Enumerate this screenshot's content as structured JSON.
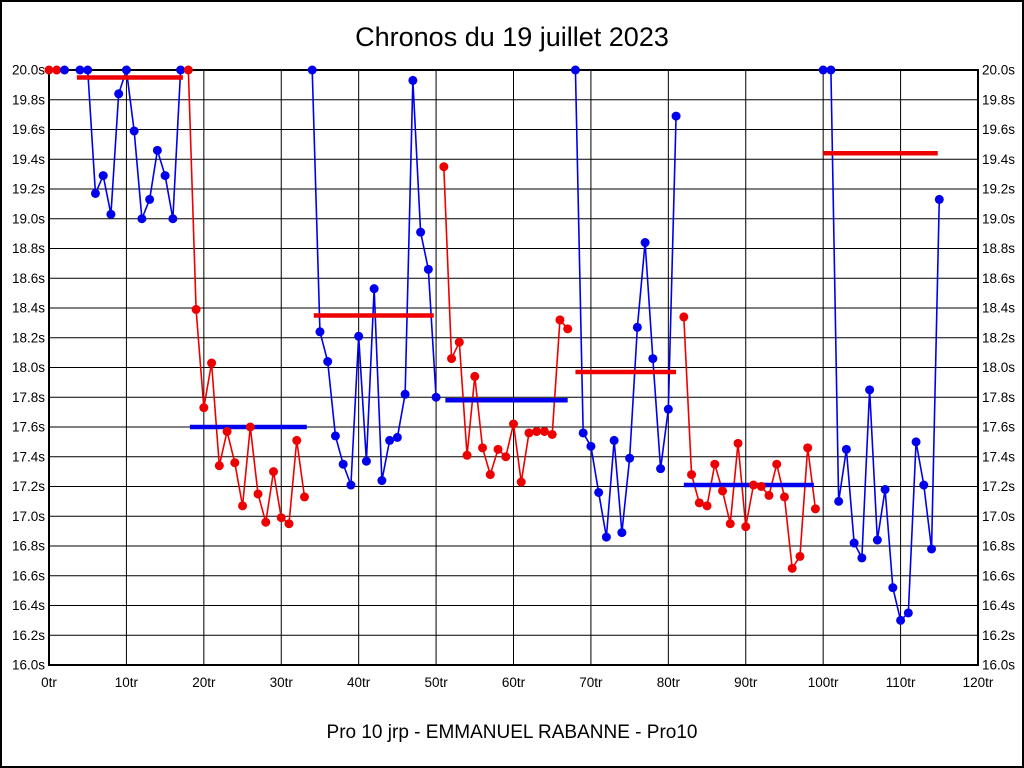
{
  "window": {
    "title": "Chronos du 19 juillet 2023",
    "footer": "Pro 10 jrp - EMMANUEL RABANNE - Pro10"
  },
  "chart_data": {
    "type": "line",
    "title": "Chronos du 19 juillet 2023",
    "subtitle": "Pro 10 jrp - EMMANUEL RABANNE - Pro10",
    "x_unit": "tr",
    "y_unit": "s",
    "xlim": [
      0,
      120
    ],
    "ylim": [
      16.0,
      20.0
    ],
    "x_tick_step": 10,
    "y_tick_step": 0.2,
    "grid": true,
    "clip_max": 20.0,
    "x_ticks": [
      "0tr",
      "10tr",
      "20tr",
      "30tr",
      "40tr",
      "50tr",
      "60tr",
      "70tr",
      "80tr",
      "90tr",
      "100tr",
      "110tr",
      "120tr"
    ],
    "y_ticks": [
      "20.0s",
      "19.8s",
      "19.6s",
      "19.4s",
      "19.2s",
      "19.0s",
      "18.8s",
      "18.6s",
      "18.4s",
      "18.2s",
      "18.0s",
      "17.8s",
      "17.6s",
      "17.4s",
      "17.2s",
      "17.0s",
      "16.8s",
      "16.6s",
      "16.4s",
      "16.2s",
      "16.0s"
    ],
    "colors": {
      "blue": "#0000ee",
      "red": "#ee0000",
      "grid": "#000000",
      "background": "#ffffff"
    },
    "segments": [
      {
        "color": "red",
        "points": [
          [
            0,
            20.0
          ],
          [
            1,
            20.0
          ]
        ]
      },
      {
        "color": "blue",
        "points": [
          [
            2,
            20.0
          ]
        ]
      },
      {
        "color": "blue",
        "points": [
          [
            4,
            20.0
          ],
          [
            5,
            20.0
          ],
          [
            6,
            19.17
          ],
          [
            7,
            19.29
          ],
          [
            8,
            19.03
          ],
          [
            9,
            19.84
          ],
          [
            10,
            20.0
          ],
          [
            11,
            19.59
          ],
          [
            12,
            19.0
          ],
          [
            13,
            19.13
          ],
          [
            14,
            19.46
          ],
          [
            15,
            19.29
          ],
          [
            16,
            19.0
          ],
          [
            17,
            20.0
          ]
        ]
      },
      {
        "color": "red",
        "points": [
          [
            18,
            20.0
          ],
          [
            19,
            18.39
          ],
          [
            20,
            17.73
          ],
          [
            21,
            18.03
          ],
          [
            22,
            17.34
          ],
          [
            23,
            17.57
          ],
          [
            24,
            17.36
          ],
          [
            25,
            17.07
          ],
          [
            26,
            17.6
          ],
          [
            27,
            17.15
          ],
          [
            28,
            16.96
          ],
          [
            29,
            17.3
          ],
          [
            30,
            16.99
          ],
          [
            31,
            16.95
          ],
          [
            32,
            17.51
          ],
          [
            33,
            17.13
          ]
        ]
      },
      {
        "color": "blue",
        "points": [
          [
            34,
            20.0
          ],
          [
            35,
            18.24
          ],
          [
            36,
            18.04
          ],
          [
            37,
            17.54
          ],
          [
            38,
            17.35
          ],
          [
            39,
            17.21
          ],
          [
            40,
            18.21
          ],
          [
            41,
            17.37
          ],
          [
            42,
            18.53
          ],
          [
            43,
            17.24
          ],
          [
            44,
            17.51
          ],
          [
            45,
            17.53
          ],
          [
            46,
            17.82
          ],
          [
            47,
            19.93
          ],
          [
            48,
            18.91
          ],
          [
            49,
            18.66
          ],
          [
            50,
            17.8
          ]
        ]
      },
      {
        "color": "red",
        "points": [
          [
            51,
            19.35
          ],
          [
            52,
            18.06
          ],
          [
            53,
            18.17
          ],
          [
            54,
            17.41
          ],
          [
            55,
            17.94
          ],
          [
            56,
            17.46
          ],
          [
            57,
            17.28
          ],
          [
            58,
            17.45
          ],
          [
            59,
            17.4
          ],
          [
            60,
            17.62
          ],
          [
            61,
            17.23
          ],
          [
            62,
            17.56
          ],
          [
            63,
            17.57
          ],
          [
            64,
            17.57
          ],
          [
            65,
            17.55
          ],
          [
            66,
            18.32
          ],
          [
            67,
            18.26
          ]
        ]
      },
      {
        "color": "blue",
        "points": [
          [
            68,
            20.0
          ],
          [
            69,
            17.56
          ],
          [
            70,
            17.47
          ],
          [
            71,
            17.16
          ],
          [
            72,
            16.86
          ],
          [
            73,
            17.51
          ],
          [
            74,
            16.89
          ],
          [
            75,
            17.39
          ],
          [
            76,
            18.27
          ],
          [
            77,
            18.84
          ],
          [
            78,
            18.06
          ],
          [
            79,
            17.32
          ],
          [
            80,
            17.72
          ],
          [
            81,
            19.69
          ]
        ]
      },
      {
        "color": "red",
        "points": [
          [
            82,
            18.34
          ],
          [
            83,
            17.28
          ],
          [
            84,
            17.09
          ],
          [
            85,
            17.07
          ],
          [
            86,
            17.35
          ],
          [
            87,
            17.17
          ],
          [
            88,
            16.95
          ],
          [
            89,
            17.49
          ],
          [
            90,
            16.93
          ],
          [
            91,
            17.21
          ],
          [
            92,
            17.2
          ],
          [
            93,
            17.14
          ],
          [
            94,
            17.35
          ],
          [
            95,
            17.13
          ],
          [
            96,
            16.65
          ],
          [
            97,
            16.73
          ],
          [
            98,
            17.46
          ],
          [
            99,
            17.05
          ]
        ]
      },
      {
        "color": "blue",
        "points": [
          [
            100,
            20.0
          ],
          [
            101,
            20.0
          ],
          [
            102,
            17.1
          ],
          [
            103,
            17.45
          ],
          [
            104,
            16.82
          ],
          [
            105,
            16.72
          ],
          [
            106,
            17.85
          ],
          [
            107,
            16.84
          ],
          [
            108,
            17.18
          ],
          [
            109,
            16.52
          ],
          [
            110,
            16.3
          ],
          [
            111,
            16.35
          ],
          [
            112,
            17.5
          ],
          [
            113,
            17.21
          ],
          [
            114,
            16.78
          ],
          [
            115,
            19.13
          ]
        ]
      }
    ],
    "average_lines": [
      {
        "color": "red",
        "value": 19.95,
        "x_start": 3.6,
        "x_end": 17.3
      },
      {
        "color": "blue",
        "value": 17.6,
        "x_start": 18.2,
        "x_end": 33.3
      },
      {
        "color": "red",
        "value": 18.35,
        "x_start": 34.2,
        "x_end": 49.7
      },
      {
        "color": "blue",
        "value": 17.78,
        "x_start": 51.2,
        "x_end": 67.0
      },
      {
        "color": "red",
        "value": 17.97,
        "x_start": 68.0,
        "x_end": 81.0
      },
      {
        "color": "blue",
        "value": 17.21,
        "x_start": 82.0,
        "x_end": 98.8
      },
      {
        "color": "red",
        "value": 19.44,
        "x_start": 100.0,
        "x_end": 114.8
      }
    ]
  }
}
